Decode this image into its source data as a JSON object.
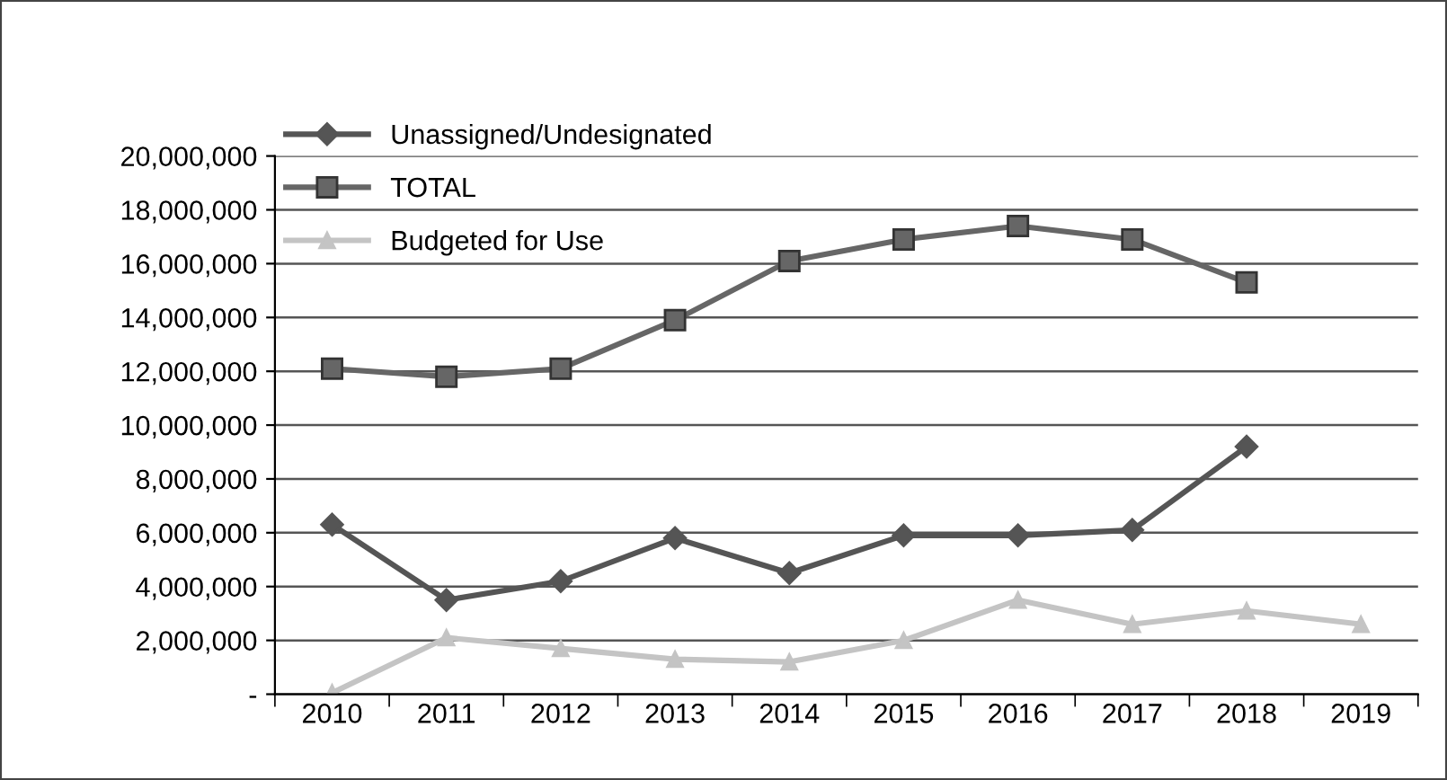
{
  "chart_data": {
    "type": "line",
    "categories": [
      "2010",
      "2011",
      "2012",
      "2013",
      "2014",
      "2015",
      "2016",
      "2017",
      "2018",
      "2019"
    ],
    "series": [
      {
        "name": "Unassigned/Undesignated",
        "color": "#555555",
        "marker": "diamond",
        "values": [
          6300000,
          3500000,
          4200000,
          5800000,
          4500000,
          5900000,
          5900000,
          6100000,
          9200000,
          null
        ]
      },
      {
        "name": "TOTAL",
        "color": "#666666",
        "marker": "square",
        "values": [
          12100000,
          11800000,
          12100000,
          13900000,
          16100000,
          16900000,
          17400000,
          16900000,
          15300000,
          null
        ]
      },
      {
        "name": "Budgeted for Use",
        "color": "#c4c4c4",
        "marker": "triangle",
        "values": [
          50000,
          2100000,
          1700000,
          1300000,
          1200000,
          2000000,
          3500000,
          2600000,
          3100000,
          2600000
        ]
      }
    ],
    "ylim": [
      0,
      20000000
    ],
    "yticks": [
      {
        "value": 0,
        "label": "-"
      },
      {
        "value": 2000000,
        "label": "2,000,000"
      },
      {
        "value": 4000000,
        "label": "4,000,000"
      },
      {
        "value": 6000000,
        "label": "6,000,000"
      },
      {
        "value": 8000000,
        "label": "8,000,000"
      },
      {
        "value": 10000000,
        "label": "10,000,000"
      },
      {
        "value": 12000000,
        "label": "12,000,000"
      },
      {
        "value": 14000000,
        "label": "14,000,000"
      },
      {
        "value": 16000000,
        "label": "16,000,000"
      },
      {
        "value": 18000000,
        "label": "18,000,000"
      },
      {
        "value": 20000000,
        "label": "20,000,000"
      }
    ],
    "grid": "y",
    "legend": "top left",
    "line_style": "solid"
  }
}
